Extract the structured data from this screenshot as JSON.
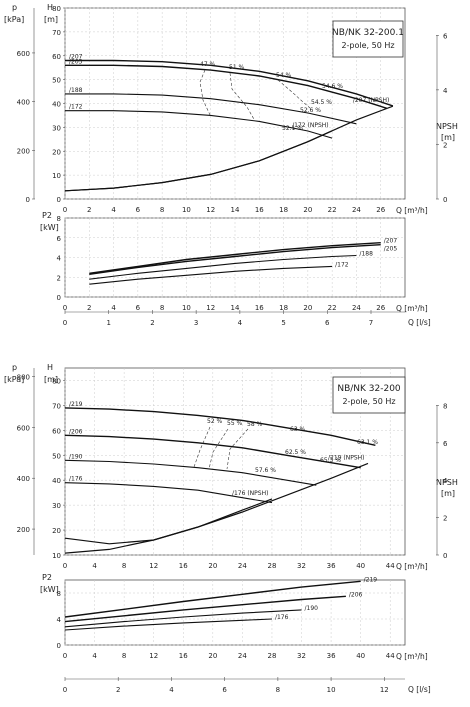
{
  "charts": [
    {
      "id": "top",
      "title_box": {
        "line1": "NB/NK 32-200.1",
        "line2": "2-pole, 50 Hz"
      },
      "head": {
        "p_unit": [
          "p",
          "[kPa]"
        ],
        "h_unit": [
          "H",
          "[m]"
        ],
        "p_ticks": [
          "600",
          "400",
          "200",
          "0"
        ],
        "h_ticks": [
          "0",
          "10",
          "20",
          "30",
          "40",
          "50",
          "60",
          "70",
          "80"
        ],
        "npsh_unit": [
          "NPSH",
          "[m]"
        ],
        "npsh_ticks": [
          "0",
          "2",
          "4",
          "6"
        ],
        "q_ticks": [
          "0",
          "2",
          "4",
          "6",
          "8",
          "10",
          "12",
          "14",
          "16",
          "18",
          "20",
          "22",
          "24",
          "26"
        ],
        "q_unit": "Q [m³/h]"
      },
      "power": {
        "unit": [
          "P2",
          "[kW]"
        ],
        "ticks": [
          "0",
          "2",
          "4",
          "6",
          "8"
        ],
        "q_ticks": [
          "0",
          "2",
          "4",
          "6",
          "8",
          "10",
          "12",
          "14",
          "16",
          "18",
          "20",
          "22",
          "24",
          "26"
        ],
        "q_unit": "Q [m³/h]"
      },
      "ls_axis": {
        "ticks": [
          "0",
          "1",
          "2",
          "3",
          "4",
          "5",
          "6",
          "7"
        ],
        "unit": "Q [l/s]"
      }
    },
    {
      "id": "bottom",
      "title_box": {
        "line1": "NB/NK 32-200",
        "line2": "2-pole, 50 Hz"
      },
      "head": {
        "p_unit": [
          "p",
          "[kPa]"
        ],
        "h_unit": [
          "H",
          "[m]"
        ],
        "p_ticks": [
          "800",
          "600",
          "400",
          "200"
        ],
        "h_ticks": [
          "10",
          "20",
          "30",
          "40",
          "50",
          "60",
          "70",
          "80"
        ],
        "npsh_unit": [
          "NPSH",
          "[m]"
        ],
        "npsh_ticks": [
          "0",
          "2",
          "4",
          "6",
          "8"
        ],
        "q_ticks": [
          "0",
          "4",
          "8",
          "12",
          "16",
          "20",
          "24",
          "28",
          "32",
          "36",
          "40",
          "44"
        ],
        "q_unit": "Q [m³/h]"
      },
      "power": {
        "unit": [
          "P2",
          "[kW]"
        ],
        "ticks": [
          "0",
          "4",
          "8"
        ],
        "q_ticks": [
          "0",
          "4",
          "8",
          "12",
          "16",
          "20",
          "24",
          "28",
          "32",
          "36",
          "40",
          "44"
        ],
        "q_unit": "Q [m³/h]"
      },
      "ls_axis": {
        "ticks": [
          "0",
          "2",
          "4",
          "6",
          "8",
          "10",
          "12"
        ],
        "unit": "Q [l/s]"
      }
    }
  ],
  "chart_data": [
    {
      "type": "line",
      "title": "NB/NK 32-200.1",
      "subtitle": "2-pole, 50 Hz",
      "xlabel": "Q [m³/h]",
      "ylabel": "H [m]",
      "xlim": [
        0,
        28
      ],
      "ylim": [
        0,
        80
      ],
      "grid": true,
      "head_curves": [
        {
          "name": "/207",
          "x": [
            0,
            4,
            8,
            12,
            16,
            20,
            24,
            27
          ],
          "y": [
            58,
            58,
            57.5,
            56,
            53.5,
            49.5,
            44,
            39
          ]
        },
        {
          "name": "/205",
          "x": [
            0,
            4,
            8,
            12,
            16,
            20,
            24,
            26.5
          ],
          "y": [
            56,
            56,
            55.5,
            54,
            51.5,
            47.5,
            42,
            38
          ]
        },
        {
          "name": "/188",
          "x": [
            0,
            4,
            8,
            12,
            16,
            20,
            24
          ],
          "y": [
            44,
            44,
            43.5,
            42,
            39.5,
            36,
            31.5
          ]
        },
        {
          "name": "/172",
          "x": [
            0,
            4,
            8,
            12,
            16,
            20,
            22
          ],
          "y": [
            37,
            37,
            36.5,
            35,
            32.5,
            28.5,
            25.5
          ]
        }
      ],
      "efficiency_labels": [
        "47 %",
        "51 %",
        "54 %",
        "54.6 %",
        "54.5 %",
        "52.6 %",
        "52.1 %"
      ],
      "npsh_curves": [
        {
          "name": "/172 (NPSH)",
          "x": [
            0,
            4,
            8,
            12,
            16,
            20,
            22
          ],
          "y": [
            0.3,
            0.4,
            0.6,
            0.9,
            1.4,
            2.1,
            2.5
          ]
        },
        {
          "name": "/207 (NPSH)",
          "x": [
            0,
            4,
            8,
            12,
            16,
            20,
            24,
            27
          ],
          "y": [
            0.3,
            0.4,
            0.6,
            0.9,
            1.4,
            2.1,
            2.9,
            3.4
          ]
        }
      ],
      "npsh_ylim": [
        0,
        7
      ],
      "power_ylabel": "P2 [kW]",
      "power_ylim": [
        0,
        8
      ],
      "power_curves": [
        {
          "name": "/207",
          "x": [
            2,
            6,
            10,
            14,
            18,
            22,
            26
          ],
          "y": [
            2.4,
            3.1,
            3.8,
            4.3,
            4.8,
            5.2,
            5.5
          ]
        },
        {
          "name": "/205",
          "x": [
            2,
            6,
            10,
            14,
            18,
            22,
            26
          ],
          "y": [
            2.3,
            3.0,
            3.6,
            4.1,
            4.6,
            5.0,
            5.3
          ]
        },
        {
          "name": "/188",
          "x": [
            2,
            6,
            10,
            14,
            18,
            22,
            24
          ],
          "y": [
            1.8,
            2.4,
            2.9,
            3.4,
            3.8,
            4.1,
            4.2
          ]
        },
        {
          "name": "/172",
          "x": [
            2,
            6,
            10,
            14,
            18,
            22
          ],
          "y": [
            1.3,
            1.8,
            2.2,
            2.6,
            2.9,
            3.1
          ]
        }
      ],
      "secondary_x": {
        "label": "Q [l/s]",
        "lim": [
          0,
          7.78
        ]
      }
    },
    {
      "type": "line",
      "title": "NB/NK 32-200",
      "subtitle": "2-pole, 50 Hz",
      "xlabel": "Q [m³/h]",
      "ylabel": "H [m]",
      "xlim": [
        0,
        46
      ],
      "ylim": [
        10,
        85
      ],
      "grid": true,
      "head_curves": [
        {
          "name": "/219",
          "x": [
            0,
            6,
            12,
            18,
            24,
            30,
            36,
            42
          ],
          "y": [
            69,
            68.5,
            67.5,
            66,
            64,
            61,
            58,
            54
          ]
        },
        {
          "name": "/206",
          "x": [
            0,
            6,
            12,
            18,
            24,
            30,
            36,
            40
          ],
          "y": [
            58,
            57.5,
            56.5,
            55,
            53,
            50,
            47,
            45
          ]
        },
        {
          "name": "/190",
          "x": [
            0,
            6,
            12,
            18,
            24,
            30,
            34
          ],
          "y": [
            48,
            47.5,
            46.5,
            45,
            43,
            40,
            38
          ]
        },
        {
          "name": "/176",
          "x": [
            0,
            6,
            12,
            18,
            24,
            28
          ],
          "y": [
            39,
            38.5,
            37.5,
            36,
            33,
            31
          ]
        }
      ],
      "efficiency_labels": [
        "52 %",
        "55 %",
        "58 %",
        "63 %",
        "63.1 %",
        "65.3 %",
        "62.5 %",
        "57.6 %"
      ],
      "npsh_curves": [
        {
          "name": "/219 (NPSH)",
          "x": [
            0,
            6,
            12,
            18,
            24,
            30,
            36,
            41
          ],
          "y": [
            0.1,
            0.3,
            0.8,
            1.5,
            2.3,
            3.2,
            4.1,
            4.9
          ]
        },
        {
          "name": "/176 (NPSH)",
          "x": [
            0,
            6,
            12,
            18,
            24,
            28
          ],
          "y": [
            0.9,
            0.6,
            0.8,
            1.5,
            2.4,
            3.0
          ]
        }
      ],
      "npsh_ylim": [
        0,
        10
      ],
      "power_ylabel": "P2 [kW]",
      "power_ylim": [
        0,
        10
      ],
      "power_curves": [
        {
          "name": "/219",
          "x": [
            0,
            8,
            16,
            24,
            32,
            40
          ],
          "y": [
            4.3,
            5.5,
            6.7,
            7.8,
            8.9,
            9.8
          ]
        },
        {
          "name": "/206",
          "x": [
            0,
            8,
            16,
            24,
            32,
            38
          ],
          "y": [
            3.6,
            4.5,
            5.4,
            6.2,
            7.0,
            7.5
          ]
        },
        {
          "name": "/190",
          "x": [
            0,
            8,
            16,
            24,
            32
          ],
          "y": [
            2.8,
            3.6,
            4.3,
            4.9,
            5.4
          ]
        },
        {
          "name": "/176",
          "x": [
            0,
            8,
            16,
            24,
            28
          ],
          "y": [
            2.3,
            2.9,
            3.4,
            3.8,
            4.0
          ]
        }
      ],
      "secondary_x": {
        "label": "Q [l/s]",
        "lim": [
          0,
          12.78
        ]
      }
    }
  ]
}
